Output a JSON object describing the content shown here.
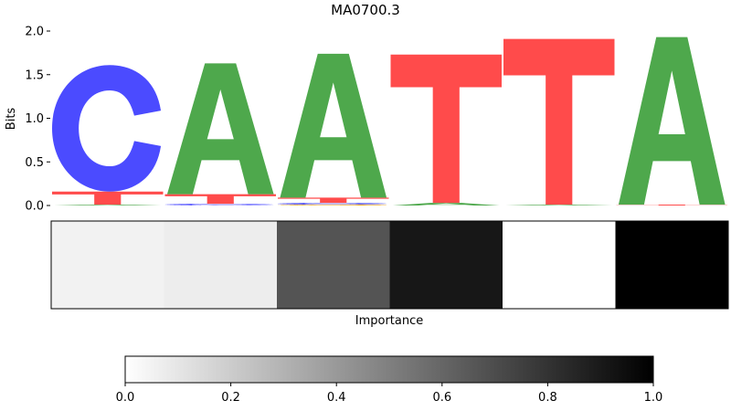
{
  "chart_data": {
    "type": "sequence-logo",
    "title": "MA0700.3",
    "ylabel": "Bits",
    "ylim": [
      0,
      2.0
    ],
    "yticks": [
      "0.0",
      "0.5",
      "1.0",
      "1.5",
      "2.0"
    ],
    "letter_colors": {
      "A": "#4ea84c",
      "C": "#4b4bff",
      "G": "#f5a000",
      "T": "#ff4b4b"
    },
    "positions": [
      {
        "stack": [
          {
            "letter": "A",
            "bits": 0.01
          },
          {
            "letter": "T",
            "bits": 0.15
          },
          {
            "letter": "C",
            "bits": 1.45
          }
        ]
      },
      {
        "stack": [
          {
            "letter": "C",
            "bits": 0.02
          },
          {
            "letter": "T",
            "bits": 0.11
          },
          {
            "letter": "A",
            "bits": 1.5
          }
        ]
      },
      {
        "stack": [
          {
            "letter": "G",
            "bits": 0.01
          },
          {
            "letter": "C",
            "bits": 0.02
          },
          {
            "letter": "T",
            "bits": 0.06
          },
          {
            "letter": "A",
            "bits": 1.65
          }
        ]
      },
      {
        "stack": [
          {
            "letter": "A",
            "bits": 0.03
          },
          {
            "letter": "T",
            "bits": 1.7
          }
        ]
      },
      {
        "stack": [
          {
            "letter": "A",
            "bits": 0.01
          },
          {
            "letter": "T",
            "bits": 1.9
          }
        ]
      },
      {
        "stack": [
          {
            "letter": "T",
            "bits": 0.01
          },
          {
            "letter": "A",
            "bits": 1.92
          }
        ]
      }
    ],
    "importance": {
      "xlabel": "Importance",
      "values": [
        0.05,
        0.07,
        0.67,
        0.91,
        0.0,
        1.0
      ],
      "colorbar": {
        "range": [
          0,
          1
        ],
        "ticks": [
          "0.0",
          "0.2",
          "0.4",
          "0.6",
          "0.8",
          "1.0"
        ]
      }
    }
  }
}
